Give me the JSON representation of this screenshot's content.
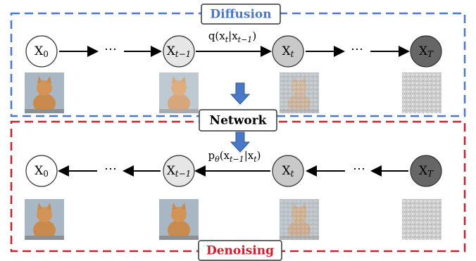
{
  "diffusion": {
    "title": "Diffusion",
    "nodes": [
      {
        "main": "X",
        "sub": "0"
      },
      {
        "main": "X",
        "sub": "t−1"
      },
      {
        "main": "X",
        "sub": "t"
      },
      {
        "main": "X",
        "sub": "T"
      }
    ],
    "ellipsis": [
      "⋯",
      "⋯"
    ],
    "transition": [
      {
        "text": "q(x"
      },
      {
        "sub": "t"
      },
      {
        "text": "|x"
      },
      {
        "sub": "t−1"
      },
      {
        "text": ")"
      }
    ]
  },
  "network": {
    "title": "Network"
  },
  "denoising": {
    "title": "Denoising",
    "nodes": [
      {
        "main": "X",
        "sub": "0"
      },
      {
        "main": "X",
        "sub": "t−1"
      },
      {
        "main": "X",
        "sub": "t"
      },
      {
        "main": "X",
        "sub": "T"
      }
    ],
    "ellipsis": [
      "⋯",
      "⋯"
    ],
    "transition": [
      {
        "text": "p"
      },
      {
        "sub": "θ"
      },
      {
        "text": "(x"
      },
      {
        "sub": "t−1"
      },
      {
        "text": "|x"
      },
      {
        "sub": "t"
      },
      {
        "text": ")"
      }
    ]
  }
}
